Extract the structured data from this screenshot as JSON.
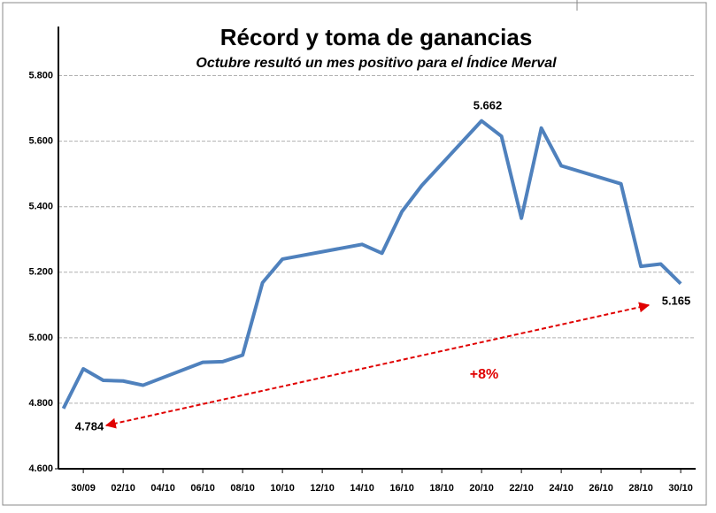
{
  "chart_data": {
    "type": "line",
    "title": "Récord y toma de ganancias",
    "subtitle": "Octubre resultó un mes positivo para el Índice Merval",
    "xlim": [
      -0.25,
      31.75
    ],
    "xticks": [
      {
        "value": 1,
        "label": "30/09"
      },
      {
        "value": 3,
        "label": "02/10"
      },
      {
        "value": 5,
        "label": "04/10"
      },
      {
        "value": 7,
        "label": "06/10"
      },
      {
        "value": 9,
        "label": "08/10"
      },
      {
        "value": 11,
        "label": "10/10"
      },
      {
        "value": 13,
        "label": "12/10"
      },
      {
        "value": 15,
        "label": "14/10"
      },
      {
        "value": 17,
        "label": "16/10"
      },
      {
        "value": 19,
        "label": "18/10"
      },
      {
        "value": 21,
        "label": "20/10"
      },
      {
        "value": 23,
        "label": "22/10"
      },
      {
        "value": 25,
        "label": "24/10"
      },
      {
        "value": 27,
        "label": "26/10"
      },
      {
        "value": 29,
        "label": "28/10"
      },
      {
        "value": 31,
        "label": "30/10"
      }
    ],
    "ylim": [
      4600,
      5950
    ],
    "yticks": [
      {
        "value": 4600,
        "label": "4.600"
      },
      {
        "value": 4800,
        "label": "4.800"
      },
      {
        "value": 5000,
        "label": "5.000"
      },
      {
        "value": 5200,
        "label": "5.200"
      },
      {
        "value": 5400,
        "label": "5.400"
      },
      {
        "value": 5600,
        "label": "5.600"
      },
      {
        "value": 5800,
        "label": "5.800"
      }
    ],
    "grid": true,
    "series": [
      {
        "color": "#4f81bd",
        "x": [
          0,
          1,
          2,
          3,
          4,
          7,
          8,
          9,
          10,
          11,
          15,
          16,
          17,
          18,
          21,
          22,
          23,
          24,
          25,
          28,
          29,
          30,
          31
        ],
        "values": [
          4784,
          4905,
          4870,
          4868,
          4855,
          4925,
          4927,
          4947,
          5168,
          5240,
          5285,
          5258,
          5385,
          5465,
          5662,
          5615,
          5365,
          5640,
          5525,
          5470,
          5218,
          5225,
          5165
        ]
      }
    ],
    "annotations": [
      "5.662",
      "5.165",
      "4.784",
      "+8%"
    ],
    "annotation_color": "#e00000"
  }
}
